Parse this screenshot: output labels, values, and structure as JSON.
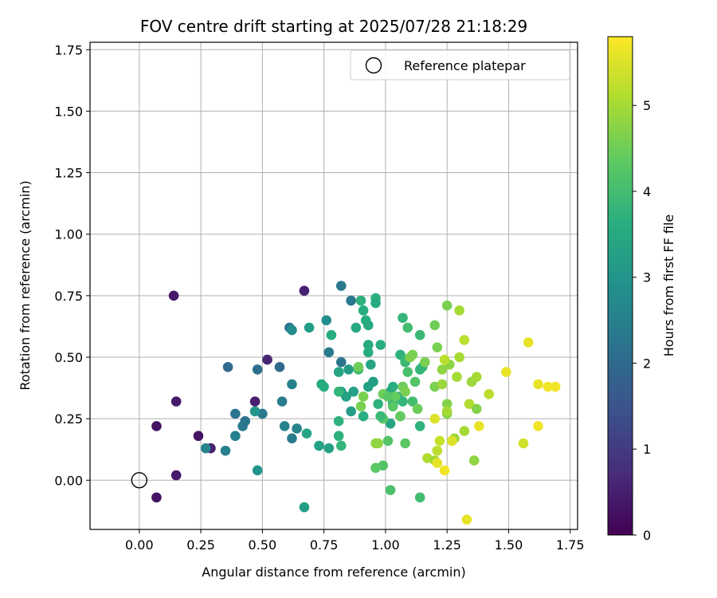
{
  "chart_data": {
    "type": "scatter",
    "title": "FOV centre drift starting at 2025/07/28 21:18:29",
    "xlabel": "Angular distance from reference (arcmin)",
    "ylabel": "Rotation from reference (arcmin)",
    "xlim": [
      -0.2,
      1.78
    ],
    "ylim": [
      -0.2,
      1.78
    ],
    "xticks": [
      "0.00",
      "0.25",
      "0.50",
      "0.75",
      "1.00",
      "1.25",
      "1.50",
      "1.75"
    ],
    "yticks": [
      "0.00",
      "0.25",
      "0.50",
      "0.75",
      "1.00",
      "1.25",
      "1.50",
      "1.75"
    ],
    "grid": true,
    "colormap": "viridis",
    "colorbar": {
      "label": "Hours from first FF file",
      "range": [
        0,
        5.8
      ],
      "ticks": [
        "0",
        "1",
        "2",
        "3",
        "4",
        "5"
      ]
    },
    "legend": {
      "placement": "top-right",
      "entries": [
        {
          "label": "Reference platepar",
          "marker": "open-circle"
        }
      ]
    },
    "reference": {
      "x": 0.0,
      "y": 0.0
    },
    "points": [
      [
        0.14,
        0.75,
        0.4
      ],
      [
        0.67,
        0.77,
        0.5
      ],
      [
        0.52,
        0.49,
        0.6
      ],
      [
        0.15,
        0.32,
        0.4
      ],
      [
        0.47,
        0.32,
        0.5
      ],
      [
        0.07,
        0.22,
        0.3
      ],
      [
        0.24,
        0.18,
        0.3
      ],
      [
        0.29,
        0.13,
        0.5
      ],
      [
        0.15,
        0.02,
        0.4
      ],
      [
        0.07,
        -0.07,
        0.3
      ],
      [
        0.36,
        0.46,
        2.0
      ],
      [
        0.48,
        0.45,
        2.1
      ],
      [
        0.57,
        0.46,
        2.0
      ],
      [
        0.61,
        0.62,
        2.3
      ],
      [
        0.39,
        0.27,
        2.2
      ],
      [
        0.43,
        0.24,
        2.2
      ],
      [
        0.42,
        0.22,
        2.3
      ],
      [
        0.39,
        0.18,
        2.5
      ],
      [
        0.27,
        0.13,
        2.6
      ],
      [
        0.35,
        0.12,
        2.5
      ],
      [
        0.5,
        0.27,
        2.3
      ],
      [
        0.58,
        0.32,
        2.4
      ],
      [
        0.62,
        0.39,
        2.5
      ],
      [
        0.64,
        0.21,
        2.6
      ],
      [
        0.59,
        0.22,
        2.5
      ],
      [
        0.62,
        0.17,
        2.4
      ],
      [
        0.77,
        0.52,
        2.4
      ],
      [
        0.82,
        0.79,
        2.3
      ],
      [
        0.86,
        0.73,
        2.3
      ],
      [
        0.82,
        0.48,
        2.2
      ],
      [
        0.76,
        0.65,
        2.8
      ],
      [
        0.62,
        0.61,
        2.8
      ],
      [
        0.69,
        0.62,
        3.2
      ],
      [
        0.47,
        0.28,
        3.0
      ],
      [
        0.48,
        0.04,
        3.0
      ],
      [
        0.67,
        -0.11,
        3.2
      ],
      [
        0.68,
        0.19,
        3.4
      ],
      [
        0.73,
        0.14,
        3.3
      ],
      [
        0.77,
        0.13,
        3.3
      ],
      [
        0.74,
        0.39,
        3.5
      ],
      [
        0.75,
        0.38,
        3.6
      ],
      [
        0.78,
        0.59,
        3.6
      ],
      [
        0.81,
        0.44,
        3.4
      ],
      [
        0.82,
        0.36,
        3.2
      ],
      [
        0.84,
        0.34,
        3.3
      ],
      [
        0.85,
        0.45,
        3.2
      ],
      [
        0.86,
        0.28,
        3.2
      ],
      [
        0.87,
        0.36,
        3.3
      ],
      [
        0.88,
        0.62,
        3.5
      ],
      [
        0.9,
        0.73,
        3.7
      ],
      [
        0.91,
        0.69,
        3.6
      ],
      [
        0.92,
        0.65,
        3.6
      ],
      [
        0.93,
        0.55,
        3.5
      ],
      [
        0.93,
        0.52,
        3.6
      ],
      [
        0.93,
        0.63,
        3.5
      ],
      [
        0.93,
        0.38,
        3.3
      ],
      [
        0.94,
        0.47,
        3.4
      ],
      [
        0.95,
        0.4,
        3.2
      ],
      [
        0.96,
        0.74,
        3.7
      ],
      [
        0.96,
        0.72,
        3.5
      ],
      [
        0.81,
        0.24,
        3.7
      ],
      [
        0.81,
        0.18,
        3.7
      ],
      [
        0.82,
        0.14,
        3.8
      ],
      [
        0.81,
        0.36,
        3.8
      ],
      [
        0.89,
        0.45,
        3.9
      ],
      [
        0.89,
        0.46,
        3.9
      ],
      [
        0.91,
        0.26,
        3.6
      ],
      [
        0.98,
        0.55,
        3.6
      ],
      [
        1.02,
        0.36,
        3.5
      ],
      [
        1.02,
        0.23,
        3.4
      ],
      [
        1.03,
        0.31,
        3.5
      ],
      [
        1.05,
        0.34,
        3.6
      ],
      [
        1.06,
        0.51,
        3.7
      ],
      [
        1.06,
        0.26,
        3.7
      ],
      [
        1.07,
        0.38,
        3.8
      ],
      [
        1.07,
        0.32,
        3.8
      ],
      [
        1.07,
        0.66,
        3.8
      ],
      [
        1.08,
        0.49,
        3.9
      ],
      [
        1.08,
        0.48,
        3.9
      ],
      [
        1.09,
        0.62,
        4.0
      ],
      [
        1.09,
        0.44,
        4.1
      ],
      [
        1.11,
        0.32,
        4.0
      ],
      [
        1.12,
        0.4,
        4.2
      ],
      [
        1.13,
        0.29,
        4.0
      ],
      [
        1.14,
        0.22,
        3.7
      ],
      [
        1.14,
        0.45,
        3.8
      ],
      [
        1.14,
        0.59,
        3.9
      ],
      [
        1.15,
        0.46,
        3.8
      ],
      [
        1.14,
        -0.07,
        4.0
      ],
      [
        1.02,
        -0.04,
        4.1
      ],
      [
        0.99,
        0.06,
        4.2
      ],
      [
        0.96,
        0.05,
        4.3
      ],
      [
        0.99,
        0.25,
        4.3
      ],
      [
        0.98,
        0.26,
        4.2
      ],
      [
        1.01,
        0.16,
        4.2
      ],
      [
        1.08,
        0.15,
        4.3
      ],
      [
        1.03,
        0.3,
        4.3
      ],
      [
        1.04,
        0.34,
        4.4
      ],
      [
        1.06,
        0.26,
        4.4
      ],
      [
        1.07,
        0.38,
        4.5
      ],
      [
        0.89,
        0.46,
        4.5
      ],
      [
        0.91,
        0.34,
        4.6
      ],
      [
        0.9,
        0.3,
        4.6
      ],
      [
        0.97,
        0.15,
        4.8
      ],
      [
        0.96,
        0.15,
        4.8
      ],
      [
        0.99,
        0.35,
        4.5
      ],
      [
        1.01,
        0.34,
        4.3
      ],
      [
        1.08,
        0.36,
        4.6
      ],
      [
        1.1,
        0.5,
        4.7
      ],
      [
        1.11,
        0.51,
        4.6
      ],
      [
        1.13,
        0.29,
        4.5
      ],
      [
        1.16,
        0.48,
        4.6
      ],
      [
        1.2,
        0.63,
        4.5
      ],
      [
        1.2,
        0.38,
        4.6
      ],
      [
        1.21,
        0.54,
        4.6
      ],
      [
        1.23,
        0.45,
        4.8
      ],
      [
        1.23,
        0.39,
        4.9
      ],
      [
        1.25,
        0.71,
        4.6
      ],
      [
        1.25,
        0.27,
        4.7
      ],
      [
        1.25,
        0.31,
        4.7
      ],
      [
        1.26,
        0.47,
        4.8
      ],
      [
        1.27,
        0.16,
        4.7
      ],
      [
        1.28,
        0.17,
        4.9
      ],
      [
        1.29,
        0.42,
        5.0
      ],
      [
        1.3,
        0.69,
        5.0
      ],
      [
        1.3,
        0.5,
        5.0
      ],
      [
        1.32,
        0.57,
        5.2
      ],
      [
        1.32,
        0.2,
        5.0
      ],
      [
        1.34,
        0.31,
        5.1
      ],
      [
        1.35,
        0.4,
        4.9
      ],
      [
        1.36,
        0.08,
        4.8
      ],
      [
        1.37,
        0.29,
        4.7
      ],
      [
        1.37,
        0.42,
        5.0
      ],
      [
        1.42,
        0.35,
        5.2
      ],
      [
        1.17,
        0.09,
        5.1
      ],
      [
        1.2,
        0.08,
        5.0
      ],
      [
        1.22,
        0.16,
        5.3
      ],
      [
        1.21,
        0.12,
        5.2
      ],
      [
        1.25,
        0.28,
        5.0
      ],
      [
        1.24,
        0.49,
        5.2
      ],
      [
        1.2,
        0.25,
        5.5
      ],
      [
        1.21,
        0.07,
        5.6
      ],
      [
        1.24,
        0.04,
        5.7
      ],
      [
        1.27,
        0.16,
        5.5
      ],
      [
        1.33,
        -0.16,
        5.6
      ],
      [
        1.38,
        0.22,
        5.6
      ],
      [
        1.49,
        0.44,
        5.6
      ],
      [
        1.56,
        0.15,
        5.4
      ],
      [
        1.58,
        0.56,
        5.6
      ],
      [
        1.62,
        0.39,
        5.6
      ],
      [
        1.62,
        0.22,
        5.7
      ],
      [
        1.66,
        0.38,
        5.7
      ],
      [
        1.69,
        0.38,
        5.7
      ],
      [
        0.98,
        0.26,
        3.9
      ],
      [
        0.97,
        0.31,
        3.7
      ],
      [
        1.03,
        0.38,
        3.6
      ]
    ]
  }
}
